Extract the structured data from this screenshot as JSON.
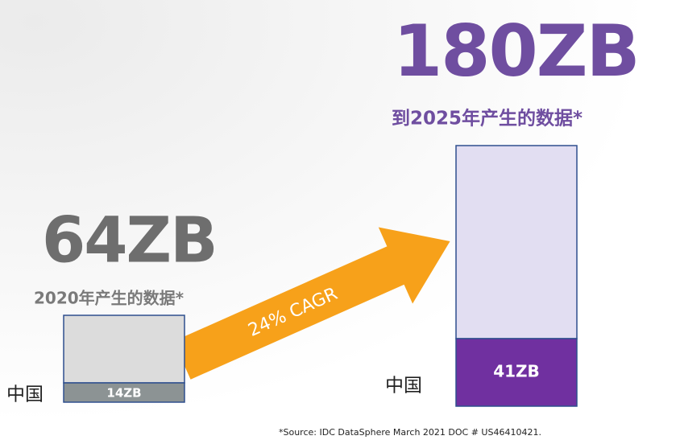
{
  "left": {
    "total": "64ZB",
    "caption": "2020年产生的数据*",
    "region": "中国",
    "region_value": "14ZB"
  },
  "arrow": {
    "label": "24% CAGR"
  },
  "right": {
    "total": "180ZB",
    "caption": "到2025年产生的数据*",
    "region": "中国",
    "region_value": "41ZB"
  },
  "footnote": "*Source: IDC DataSphere March 2021 DOC # US46410421."
}
